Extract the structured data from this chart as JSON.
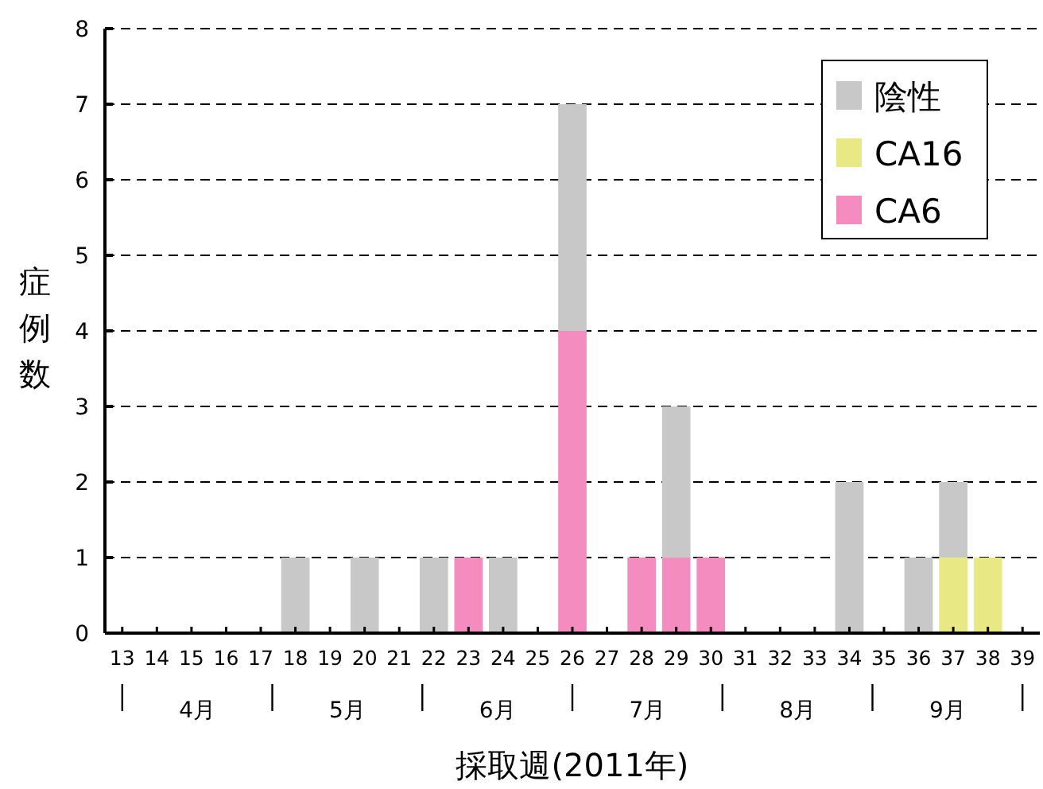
{
  "chart_data": {
    "type": "bar",
    "stacked": true,
    "xlabel": "採取週(2011年)",
    "ylabel": "症例数",
    "categories": [
      "13",
      "14",
      "15",
      "16",
      "17",
      "18",
      "19",
      "20",
      "21",
      "22",
      "23",
      "24",
      "25",
      "26",
      "27",
      "28",
      "29",
      "30",
      "31",
      "32",
      "33",
      "34",
      "35",
      "36",
      "37",
      "38",
      "39"
    ],
    "series": [
      {
        "name": "CA6",
        "color": "#f48cc0",
        "values": [
          0,
          0,
          0,
          0,
          0,
          0,
          0,
          0,
          0,
          0,
          1,
          0,
          0,
          4,
          0,
          1,
          1,
          1,
          0,
          0,
          0,
          0,
          0,
          0,
          0,
          0,
          0
        ]
      },
      {
        "name": "CA16",
        "color": "#e8e884",
        "values": [
          0,
          0,
          0,
          0,
          0,
          0,
          0,
          0,
          0,
          0,
          0,
          0,
          0,
          0,
          0,
          0,
          0,
          0,
          0,
          0,
          0,
          0,
          0,
          0,
          1,
          1,
          0
        ]
      },
      {
        "name": "陰性",
        "color": "#c8c8c8",
        "values": [
          0,
          0,
          0,
          0,
          0,
          1,
          0,
          1,
          0,
          1,
          0,
          1,
          0,
          3,
          0,
          0,
          2,
          0,
          0,
          0,
          0,
          2,
          0,
          1,
          1,
          0,
          0
        ]
      }
    ],
    "ylim": [
      0,
      8
    ],
    "yticks": [
      0,
      1,
      2,
      3,
      4,
      5,
      6,
      7,
      8
    ],
    "grid": "y",
    "legend": "top right",
    "annotations": [
      "4月",
      "5月",
      "6月",
      "7月",
      "8月",
      "9月"
    ]
  }
}
